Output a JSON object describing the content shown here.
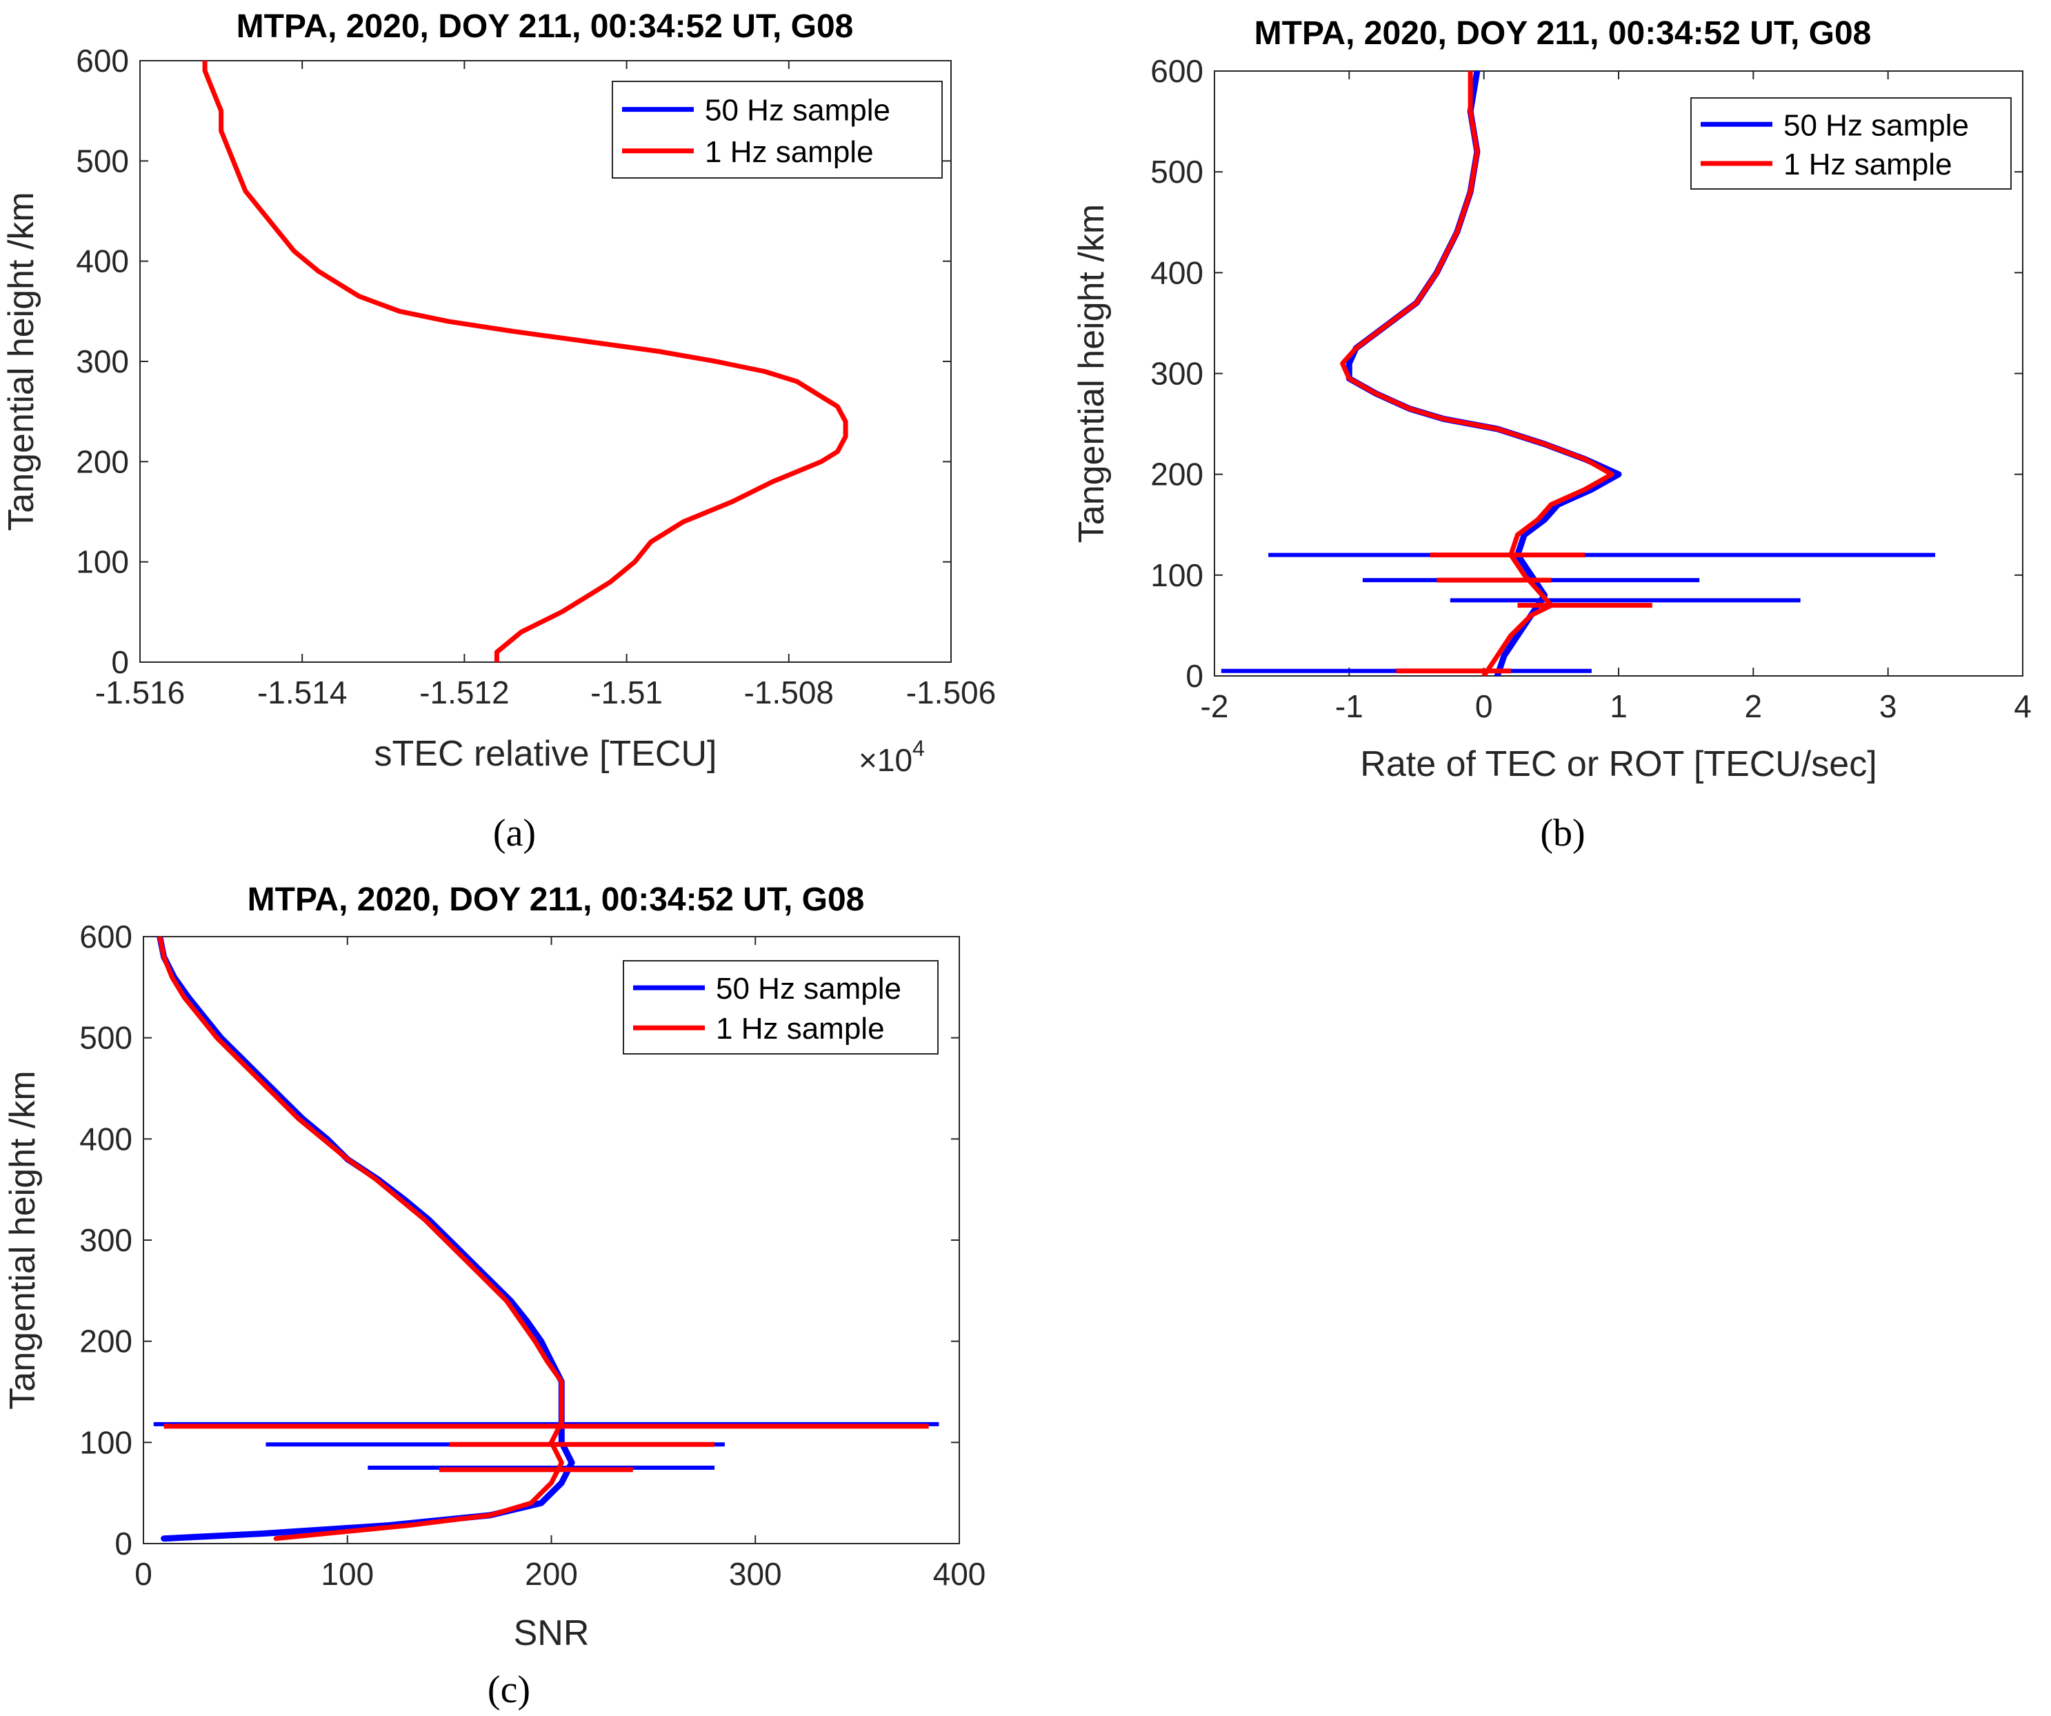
{
  "figure": {
    "panels": [
      {
        "id": "a",
        "caption": "(a)"
      },
      {
        "id": "b",
        "caption": "(b)"
      },
      {
        "id": "c",
        "caption": "(c)"
      }
    ]
  },
  "legend_entries": [
    "50 Hz sample",
    "1 Hz sample"
  ],
  "colors": {
    "blue": "#0000ff",
    "red": "#ff0000",
    "axis": "#262626"
  },
  "chart_data": [
    {
      "id": "a",
      "type": "line",
      "title": "MTPA, 2020, DOY 211, 00:34:52 UT, G08",
      "xlabel": "sTEC relative [TECU]",
      "ylabel": "Tangential height /km",
      "x_exponent_label": "×10",
      "x_exponent_power": "4",
      "xlim": [
        -1.516,
        -1.506
      ],
      "ylim": [
        0,
        600
      ],
      "xticks": [
        -1.516,
        -1.514,
        -1.512,
        -1.51,
        -1.508,
        -1.506
      ],
      "xtick_labels": [
        "-1.516",
        "-1.514",
        "-1.512",
        "-1.51",
        "-1.508",
        "-1.506"
      ],
      "yticks": [
        0,
        100,
        200,
        300,
        400,
        500,
        600
      ],
      "ytick_labels": [
        "0",
        "100",
        "200",
        "300",
        "400",
        "500",
        "600"
      ],
      "legend": [
        "50 Hz sample",
        "1 Hz sample"
      ],
      "legend_position": "top-right",
      "grid": false,
      "series": [
        {
          "name": "1 Hz sample",
          "color": "#ff0000",
          "points": [
            [
              -1.5116,
              0
            ],
            [
              -1.5116,
              10
            ],
            [
              -1.5113,
              30
            ],
            [
              -1.5108,
              50
            ],
            [
              -1.5104,
              70
            ],
            [
              -1.5102,
              80
            ],
            [
              -1.5099,
              100
            ],
            [
              -1.5097,
              120
            ],
            [
              -1.5093,
              140
            ],
            [
              -1.5087,
              160
            ],
            [
              -1.5082,
              180
            ],
            [
              -1.5079,
              190
            ],
            [
              -1.5076,
              200
            ],
            [
              -1.5074,
              210
            ],
            [
              -1.5073,
              225
            ],
            [
              -1.5073,
              240
            ],
            [
              -1.5074,
              255
            ],
            [
              -1.5076,
              265
            ],
            [
              -1.5079,
              280
            ],
            [
              -1.5083,
              290
            ],
            [
              -1.5089,
              300
            ],
            [
              -1.5096,
              310
            ],
            [
              -1.5105,
              320
            ],
            [
              -1.5114,
              330
            ],
            [
              -1.5122,
              340
            ],
            [
              -1.5128,
              350
            ],
            [
              -1.5133,
              365
            ],
            [
              -1.5136,
              380
            ],
            [
              -1.5138,
              390
            ],
            [
              -1.5141,
              410
            ],
            [
              -1.5143,
              430
            ],
            [
              -1.5145,
              450
            ],
            [
              -1.5147,
              470
            ],
            [
              -1.5148,
              490
            ],
            [
              -1.5149,
              510
            ],
            [
              -1.515,
              530
            ],
            [
              -1.515,
              550
            ],
            [
              -1.5151,
              570
            ],
            [
              -1.5152,
              590
            ],
            [
              -1.5152,
              600
            ]
          ]
        }
      ]
    },
    {
      "id": "b",
      "type": "line",
      "title": "MTPA, 2020, DOY 211, 00:34:52 UT, G08",
      "xlabel": "Rate of TEC or ROT [TECU/sec]",
      "ylabel": "Tangential height /km",
      "xlim": [
        -2,
        4
      ],
      "ylim": [
        0,
        600
      ],
      "xticks": [
        -2,
        -1,
        0,
        1,
        2,
        3,
        4
      ],
      "xtick_labels": [
        "-2",
        "-1",
        "0",
        "1",
        "2",
        "3",
        "4"
      ],
      "yticks": [
        0,
        100,
        200,
        300,
        400,
        500,
        600
      ],
      "ytick_labels": [
        "0",
        "100",
        "200",
        "300",
        "400",
        "500",
        "600"
      ],
      "legend": [
        "50 Hz sample",
        "1 Hz sample"
      ],
      "legend_position": "top-right",
      "grid": false,
      "series": [
        {
          "name": "50 Hz sample",
          "color": "#0000ff",
          "points": [
            [
              0.1,
              0
            ],
            [
              0.15,
              20
            ],
            [
              0.25,
              40
            ],
            [
              0.35,
              60
            ],
            [
              0.45,
              80
            ],
            [
              0.35,
              100
            ],
            [
              0.25,
              120
            ],
            [
              0.3,
              140
            ],
            [
              0.45,
              155
            ],
            [
              0.55,
              170
            ],
            [
              0.8,
              185
            ],
            [
              1.0,
              200
            ],
            [
              0.75,
              215
            ],
            [
              0.45,
              230
            ],
            [
              0.1,
              245
            ],
            [
              -0.3,
              255
            ],
            [
              -0.55,
              265
            ],
            [
              -0.8,
              280
            ],
            [
              -1.0,
              295
            ],
            [
              -1.0,
              310
            ],
            [
              -0.95,
              325
            ],
            [
              -0.75,
              345
            ],
            [
              -0.5,
              370
            ],
            [
              -0.35,
              400
            ],
            [
              -0.2,
              440
            ],
            [
              -0.1,
              480
            ],
            [
              -0.05,
              520
            ],
            [
              -0.1,
              560
            ],
            [
              -0.05,
              600
            ]
          ],
          "spikes": [
            [
              120,
              -1.6,
              3.35
            ],
            [
              95,
              -0.9,
              1.6
            ],
            [
              75,
              -0.25,
              2.35
            ],
            [
              5,
              -1.95,
              0.8
            ]
          ]
        },
        {
          "name": "1 Hz sample",
          "color": "#ff0000",
          "points": [
            [
              0.0,
              0
            ],
            [
              0.1,
              20
            ],
            [
              0.2,
              40
            ],
            [
              0.35,
              60
            ],
            [
              0.5,
              70
            ],
            [
              0.4,
              85
            ],
            [
              0.3,
              100
            ],
            [
              0.2,
              120
            ],
            [
              0.25,
              140
            ],
            [
              0.4,
              155
            ],
            [
              0.5,
              170
            ],
            [
              0.75,
              185
            ],
            [
              0.95,
              200
            ],
            [
              0.75,
              215
            ],
            [
              0.45,
              230
            ],
            [
              0.1,
              245
            ],
            [
              -0.3,
              255
            ],
            [
              -0.55,
              265
            ],
            [
              -0.8,
              280
            ],
            [
              -1.0,
              295
            ],
            [
              -1.05,
              310
            ],
            [
              -0.95,
              325
            ],
            [
              -0.75,
              345
            ],
            [
              -0.5,
              370
            ],
            [
              -0.35,
              400
            ],
            [
              -0.2,
              440
            ],
            [
              -0.1,
              480
            ],
            [
              -0.05,
              520
            ],
            [
              -0.1,
              560
            ],
            [
              -0.1,
              600
            ]
          ],
          "spikes": [
            [
              120,
              -0.4,
              0.75
            ],
            [
              95,
              -0.35,
              0.5
            ],
            [
              70,
              0.25,
              1.25
            ],
            [
              5,
              -0.65,
              0.2
            ]
          ]
        }
      ]
    },
    {
      "id": "c",
      "type": "line",
      "title": "MTPA, 2020, DOY 211, 00:34:52 UT, G08",
      "xlabel": "SNR",
      "ylabel": "Tangential height /km",
      "xlim": [
        0,
        400
      ],
      "ylim": [
        0,
        600
      ],
      "xticks": [
        0,
        100,
        200,
        300,
        400
      ],
      "xtick_labels": [
        "0",
        "100",
        "200",
        "300",
        "400"
      ],
      "yticks": [
        0,
        100,
        200,
        300,
        400,
        500,
        600
      ],
      "ytick_labels": [
        "0",
        "100",
        "200",
        "300",
        "400",
        "500",
        "600"
      ],
      "legend": [
        "50 Hz sample",
        "1 Hz sample"
      ],
      "legend_position": "top-right",
      "grid": false,
      "series": [
        {
          "name": "50 Hz sample",
          "color": "#0000ff",
          "points": [
            [
              10,
              5
            ],
            [
              60,
              10
            ],
            [
              120,
              18
            ],
            [
              170,
              28
            ],
            [
              195,
              40
            ],
            [
              205,
              60
            ],
            [
              210,
              80
            ],
            [
              205,
              100
            ],
            [
              205,
              120
            ],
            [
              205,
              140
            ],
            [
              205,
              160
            ],
            [
              200,
              180
            ],
            [
              195,
              200
            ],
            [
              188,
              220
            ],
            [
              180,
              240
            ],
            [
              170,
              260
            ],
            [
              160,
              280
            ],
            [
              150,
              300
            ],
            [
              140,
              320
            ],
            [
              128,
              340
            ],
            [
              115,
              360
            ],
            [
              100,
              380
            ],
            [
              90,
              400
            ],
            [
              78,
              420
            ],
            [
              68,
              440
            ],
            [
              58,
              460
            ],
            [
              48,
              480
            ],
            [
              38,
              500
            ],
            [
              30,
              520
            ],
            [
              22,
              540
            ],
            [
              15,
              560
            ],
            [
              10,
              580
            ],
            [
              8,
              600
            ]
          ],
          "spikes": [
            [
              118,
              5,
              390
            ],
            [
              98,
              60,
              285
            ],
            [
              75,
              110,
              280
            ]
          ]
        },
        {
          "name": "1 Hz sample",
          "color": "#ff0000",
          "points": [
            [
              65,
              5
            ],
            [
              90,
              10
            ],
            [
              130,
              18
            ],
            [
              170,
              28
            ],
            [
              190,
              40
            ],
            [
              200,
              60
            ],
            [
              205,
              80
            ],
            [
              200,
              100
            ],
            [
              205,
              120
            ],
            [
              205,
              140
            ],
            [
              205,
              160
            ],
            [
              198,
              180
            ],
            [
              192,
              200
            ],
            [
              185,
              220
            ],
            [
              178,
              240
            ],
            [
              168,
              260
            ],
            [
              158,
              280
            ],
            [
              148,
              300
            ],
            [
              138,
              320
            ],
            [
              126,
              340
            ],
            [
              114,
              360
            ],
            [
              100,
              380
            ],
            [
              88,
              400
            ],
            [
              76,
              420
            ],
            [
              66,
              440
            ],
            [
              56,
              460
            ],
            [
              46,
              480
            ],
            [
              36,
              500
            ],
            [
              28,
              520
            ],
            [
              20,
              540
            ],
            [
              14,
              560
            ],
            [
              10,
              580
            ],
            [
              8,
              600
            ]
          ],
          "spikes": [
            [
              116,
              10,
              385
            ],
            [
              98,
              150,
              280
            ],
            [
              73,
              145,
              240
            ]
          ]
        }
      ]
    }
  ]
}
